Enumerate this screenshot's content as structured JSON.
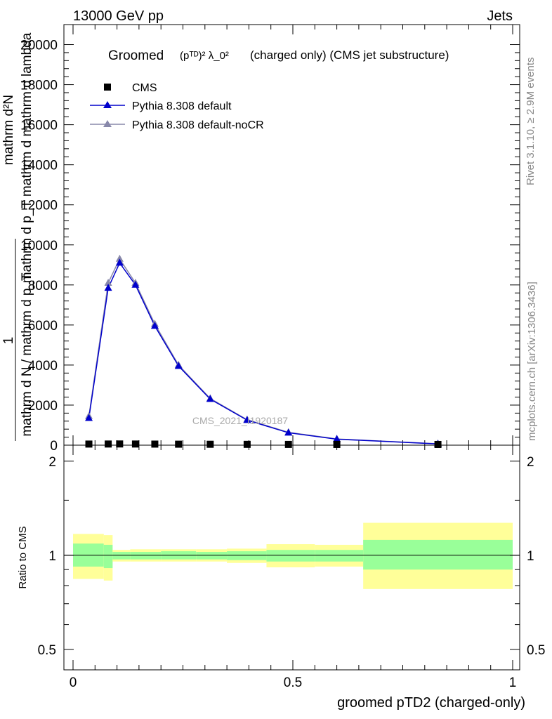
{
  "header": {
    "left": "13000 GeV pp",
    "right": "Jets"
  },
  "side_labels": {
    "rivet": "Rivet 3.1.10, ≥ 2.9M events",
    "mcplots": "mcplots.cern.ch [arXiv:1306.3436]"
  },
  "chart_data": [
    {
      "type": "line",
      "title_main": "Groomed",
      "title_math": "(pᵀᴰ)² λ_0²",
      "title_rest": "(charged only) (CMS jet substructure)",
      "ylabel_top": "mathrm d²N",
      "ylabel_frac": "1",
      "ylabel_mid": "mathrm d p_T mathrm d mathrm d lambda",
      "ylabel_bottom": "mathrm d N / mathrm d p_T",
      "watermark": "CMS_2021_I1920187",
      "xlim": [
        0,
        1
      ],
      "ylim": [
        0,
        21000
      ],
      "yticks": [
        0,
        2000,
        4000,
        6000,
        8000,
        10000,
        12000,
        14000,
        16000,
        18000,
        20000
      ],
      "ytick_labels": [
        "0",
        "2000",
        "4000",
        "6000",
        "8000",
        "10000",
        "12000",
        "14000",
        "16000",
        "18000",
        "20000"
      ],
      "legend_position": "top-left",
      "series": [
        {
          "name": "CMS",
          "marker": "square",
          "color": "#000000",
          "x": [
            0.036,
            0.08,
            0.106,
            0.142,
            0.186,
            0.24,
            0.312,
            0.396,
            0.49,
            0.6,
            0.83
          ],
          "y": [
            20,
            22,
            25,
            22,
            18,
            14,
            10,
            6,
            3,
            1.5,
            0.5
          ]
        },
        {
          "name": "Pythia 8.308 default",
          "marker": "triangle",
          "color": "#0000cc",
          "x": [
            0.036,
            0.08,
            0.106,
            0.142,
            0.186,
            0.24,
            0.312,
            0.396,
            0.49,
            0.6,
            0.83
          ],
          "y": [
            1350,
            7850,
            9100,
            8000,
            5950,
            3950,
            2300,
            1250,
            620,
            300,
            60
          ]
        },
        {
          "name": "Pythia 8.308 default-noCR",
          "marker": "triangle",
          "color": "#8888aa",
          "x": [
            0.036,
            0.08,
            0.106,
            0.142,
            0.186,
            0.24,
            0.312,
            0.396,
            0.49,
            0.6,
            0.83
          ],
          "y": [
            1450,
            8100,
            9300,
            8100,
            6050,
            4000,
            2330,
            1270,
            640,
            310,
            70
          ]
        }
      ]
    },
    {
      "type": "area",
      "ylabel": "Ratio to CMS",
      "xlabel": "groomed pTD2 (charged-only)",
      "xlim": [
        0,
        1
      ],
      "ylim": [
        0.43,
        2.25
      ],
      "log_y": true,
      "yticks": [
        0.5,
        1,
        2
      ],
      "ytick_labels": [
        "0.5",
        "1",
        "2"
      ],
      "xticks": [
        0,
        0.5,
        1
      ],
      "xtick_labels": [
        "0",
        "0.5",
        "1"
      ],
      "reference_line": 1,
      "bands": {
        "inner_color": "#99ff99",
        "outer_color": "#ffff99",
        "bins": [
          {
            "x0": 0.0,
            "x1": 0.07,
            "inner": [
              0.92,
              1.09
            ],
            "outer": [
              0.84,
              1.17
            ]
          },
          {
            "x0": 0.07,
            "x1": 0.09,
            "inner": [
              0.91,
              1.08
            ],
            "outer": [
              0.83,
              1.16
            ]
          },
          {
            "x0": 0.09,
            "x1": 0.13,
            "inner": [
              0.97,
              1.025
            ],
            "outer": [
              0.955,
              1.04
            ]
          },
          {
            "x0": 0.13,
            "x1": 0.2,
            "inner": [
              0.97,
              1.025
            ],
            "outer": [
              0.955,
              1.045
            ]
          },
          {
            "x0": 0.2,
            "x1": 0.28,
            "inner": [
              0.97,
              1.03
            ],
            "outer": [
              0.955,
              1.045
            ]
          },
          {
            "x0": 0.28,
            "x1": 0.35,
            "inner": [
              0.97,
              1.025
            ],
            "outer": [
              0.955,
              1.045
            ]
          },
          {
            "x0": 0.35,
            "x1": 0.44,
            "inner": [
              0.965,
              1.03
            ],
            "outer": [
              0.945,
              1.05
            ]
          },
          {
            "x0": 0.44,
            "x1": 0.55,
            "inner": [
              0.955,
              1.04
            ],
            "outer": [
              0.915,
              1.085
            ]
          },
          {
            "x0": 0.55,
            "x1": 0.66,
            "inner": [
              0.955,
              1.04
            ],
            "outer": [
              0.92,
              1.08
            ]
          },
          {
            "x0": 0.66,
            "x1": 1.0,
            "inner": [
              0.9,
              1.12
            ],
            "outer": [
              0.78,
              1.27
            ]
          }
        ]
      }
    }
  ]
}
